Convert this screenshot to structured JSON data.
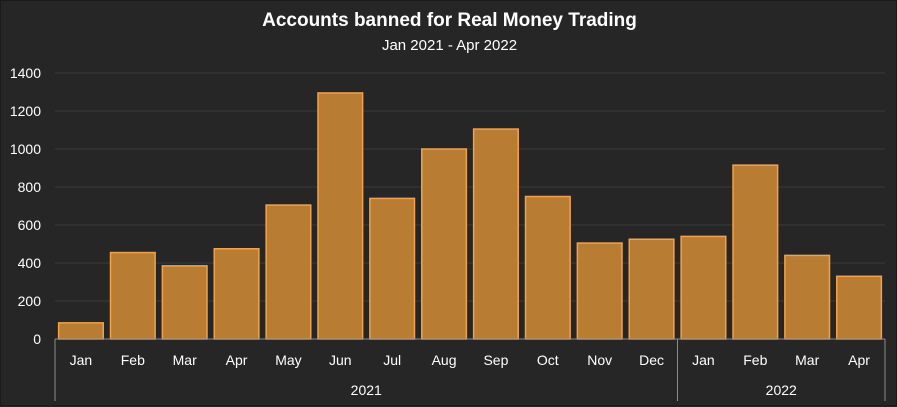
{
  "chart_data": {
    "type": "bar",
    "title": "Accounts banned for Real Money Trading",
    "subtitle": "Jan 2021 - Apr 2022",
    "xlabel": "",
    "ylabel": "",
    "ylim": [
      0,
      1400
    ],
    "yticks": [
      0,
      200,
      400,
      600,
      800,
      1000,
      1200,
      1400
    ],
    "grid": true,
    "legend": "none",
    "categories": [
      "Jan",
      "Feb",
      "Mar",
      "Apr",
      "May",
      "Jun",
      "Jul",
      "Aug",
      "Sep",
      "Oct",
      "Nov",
      "Dec",
      "Jan",
      "Feb",
      "Mar",
      "Apr"
    ],
    "groups": [
      {
        "label": "2021",
        "count": 12
      },
      {
        "label": "2022",
        "count": 4
      }
    ],
    "values": [
      85,
      455,
      385,
      475,
      705,
      1295,
      740,
      1000,
      1105,
      750,
      505,
      525,
      540,
      915,
      440,
      330
    ],
    "colors": {
      "bar_fill": "#b87c32",
      "bar_stroke": "#f2a24a",
      "background": "#262626",
      "grid": "#3a3a3a",
      "text": "#ffffff"
    }
  }
}
